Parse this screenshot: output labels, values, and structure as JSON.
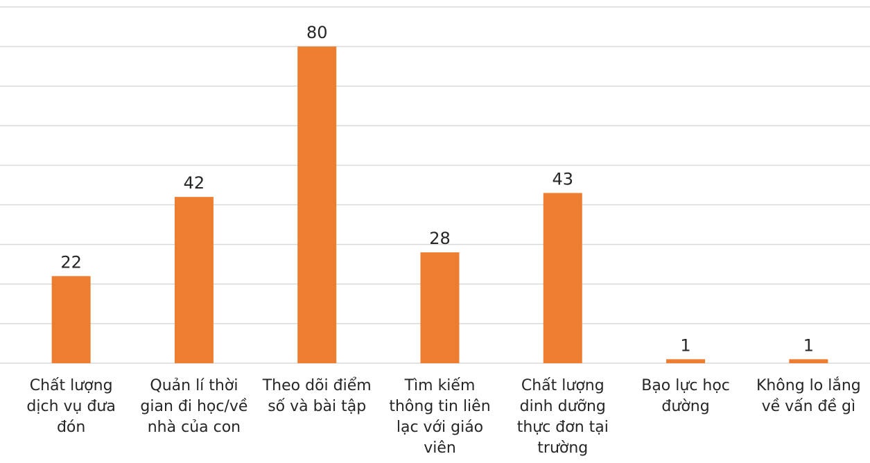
{
  "chart_data": {
    "type": "bar",
    "categories": [
      [
        "Chất lượng",
        "dịch vụ đưa",
        "đón"
      ],
      [
        "Quản lí thời",
        "gian đi học/về",
        "nhà của con"
      ],
      [
        "Theo dõi điểm",
        "số và bài tập"
      ],
      [
        "Tìm kiếm",
        "thông tin liên",
        "lạc với giáo",
        "viên"
      ],
      [
        "Chất lượng",
        "dinh dưỡng",
        "thực đơn tại",
        "trường"
      ],
      [
        "Bạo lực học",
        "đường"
      ],
      [
        "Không lo lắng",
        "về vấn đề gì"
      ]
    ],
    "values": [
      22,
      42,
      80,
      28,
      43,
      1,
      1
    ],
    "data_labels": [
      "22",
      "42",
      "80",
      "28",
      "43",
      "1",
      "1"
    ],
    "ylim": [
      0,
      90
    ],
    "gridlines": [
      0,
      10,
      20,
      30,
      40,
      50,
      60,
      70,
      80,
      90
    ],
    "grid": true,
    "legend": "none",
    "bar_color": "#ed7d31",
    "grid_color": "#d9d9d9",
    "text_color": "#262626"
  }
}
